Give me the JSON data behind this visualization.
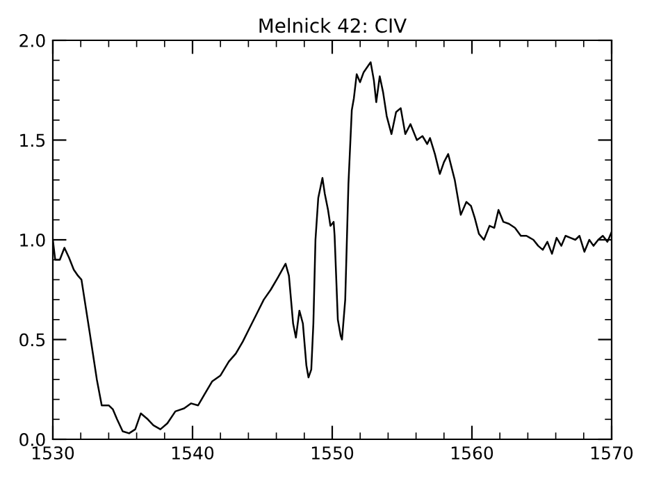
{
  "chart_data": {
    "type": "line",
    "title": "Melnick 42: CIV",
    "xlim": [
      1530,
      1570
    ],
    "ylim": [
      0,
      2.0
    ],
    "xticks": [
      1530,
      1540,
      1550,
      1560,
      1570
    ],
    "yticks": [
      {
        "value": 0,
        "label": "0.0"
      },
      {
        "value": 0.5,
        "label": "0.5"
      },
      {
        "value": 1.0,
        "label": "1.0"
      },
      {
        "value": 1.5,
        "label": "1.5"
      },
      {
        "value": 2.0,
        "label": "2.0"
      }
    ],
    "grid": false,
    "legend": false,
    "marker": "none",
    "line_style": "solid",
    "series": [
      {
        "color": "#000000",
        "x": [
          1530,
          1530.17,
          1530.5,
          1530.83,
          1531.16,
          1531.5,
          1531.8,
          1532.05,
          1532.65,
          1533.15,
          1533.5,
          1534.0,
          1534.3,
          1534.6,
          1535.0,
          1535.46,
          1535.9,
          1536.3,
          1536.8,
          1537.2,
          1537.7,
          1538.2,
          1538.77,
          1539.4,
          1539.9,
          1540.4,
          1540.9,
          1541.4,
          1542.0,
          1542.6,
          1543.1,
          1543.6,
          1544.1,
          1544.6,
          1545.1,
          1545.6,
          1546.1,
          1546.66,
          1546.9,
          1547.2,
          1547.4,
          1547.65,
          1547.9,
          1548.15,
          1548.3,
          1548.5,
          1548.65,
          1548.8,
          1549.0,
          1549.3,
          1549.47,
          1549.7,
          1549.87,
          1550.1,
          1550.17,
          1550.4,
          1550.6,
          1550.7,
          1550.93,
          1551.16,
          1551.4,
          1551.55,
          1551.75,
          1551.99,
          1552.25,
          1552.55,
          1552.75,
          1552.98,
          1553.15,
          1553.4,
          1553.64,
          1553.9,
          1554.24,
          1554.57,
          1554.9,
          1555.23,
          1555.6,
          1556.06,
          1556.46,
          1556.8,
          1557.0,
          1557.35,
          1557.7,
          1558.0,
          1558.3,
          1558.77,
          1559.2,
          1559.6,
          1559.93,
          1560.2,
          1560.5,
          1560.86,
          1561.26,
          1561.6,
          1561.9,
          1562.25,
          1562.65,
          1563.08,
          1563.5,
          1563.9,
          1564.4,
          1564.74,
          1565.07,
          1565.4,
          1565.73,
          1566.06,
          1566.4,
          1566.7,
          1567.05,
          1567.4,
          1567.7,
          1568.05,
          1568.4,
          1568.7,
          1569.04,
          1569.37,
          1569.7,
          1570.0
        ],
        "values": [
          1.0,
          0.9,
          0.9,
          0.96,
          0.91,
          0.85,
          0.82,
          0.8,
          0.53,
          0.3,
          0.17,
          0.17,
          0.15,
          0.1,
          0.04,
          0.03,
          0.05,
          0.13,
          0.1,
          0.07,
          0.05,
          0.08,
          0.14,
          0.155,
          0.18,
          0.17,
          0.23,
          0.29,
          0.32,
          0.39,
          0.43,
          0.49,
          0.56,
          0.63,
          0.7,
          0.75,
          0.81,
          0.88,
          0.82,
          0.58,
          0.51,
          0.645,
          0.58,
          0.37,
          0.31,
          0.35,
          0.58,
          1.0,
          1.21,
          1.31,
          1.23,
          1.15,
          1.07,
          1.09,
          1.02,
          0.6,
          0.52,
          0.5,
          0.7,
          1.28,
          1.65,
          1.71,
          1.83,
          1.79,
          1.84,
          1.87,
          1.89,
          1.8,
          1.69,
          1.82,
          1.74,
          1.62,
          1.53,
          1.64,
          1.66,
          1.53,
          1.58,
          1.5,
          1.52,
          1.48,
          1.51,
          1.43,
          1.33,
          1.39,
          1.43,
          1.3,
          1.125,
          1.19,
          1.17,
          1.11,
          1.03,
          1.0,
          1.07,
          1.06,
          1.15,
          1.09,
          1.08,
          1.06,
          1.02,
          1.02,
          1.0,
          0.97,
          0.95,
          0.99,
          0.93,
          1.01,
          0.97,
          1.02,
          1.01,
          1.0,
          1.02,
          0.94,
          1.0,
          0.97,
          1.0,
          1.02,
          0.99,
          1.04
        ]
      }
    ]
  }
}
